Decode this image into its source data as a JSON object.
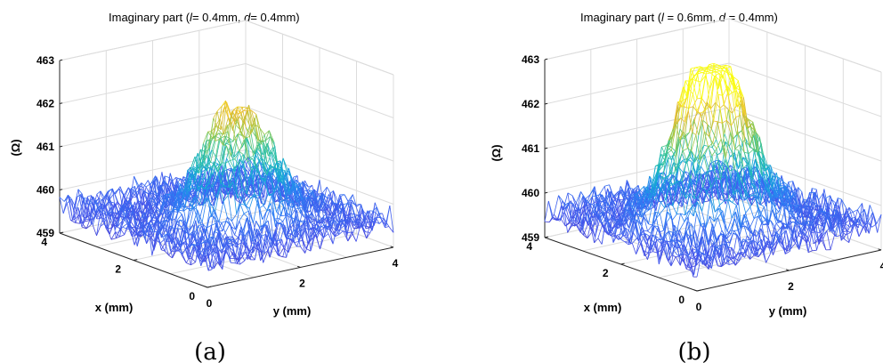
{
  "figure": {
    "panels": [
      {
        "caption": "(a)",
        "title_prefix": "Imaginary part   (",
        "title_l_var": "l",
        "title_l_value": "= 0.4mm, ",
        "title_d_var": "d",
        "title_d_value": "= 0.4mm)"
      },
      {
        "caption": "(b)",
        "title_prefix": "Imaginary part   (",
        "title_l_var": "l",
        "title_l_value": " = 0.6mm, ",
        "title_d_var": "d",
        "title_d_value": " = 0.4mm)"
      }
    ]
  },
  "chart_data": [
    {
      "type": "surface-mesh",
      "title": "Imaginary part (l= 0.4mm, d= 0.4mm)",
      "xlabel": "x (mm)",
      "ylabel": "y (mm)",
      "zlabel": "(Ω)",
      "xlim": [
        0,
        4
      ],
      "ylim": [
        0,
        4
      ],
      "zlim": [
        459,
        463
      ],
      "x_ticks": [
        "0",
        "2",
        "4"
      ],
      "y_ticks": [
        "0",
        "2",
        "4"
      ],
      "z_ticks": [
        "459",
        "460",
        "461",
        "462",
        "463"
      ],
      "baseline": 459.6,
      "peaks": [
        {
          "x": 1.8,
          "y": 1.8,
          "height": 461.2
        },
        {
          "x": 1.8,
          "y": 2.4,
          "height": 461.0
        }
      ],
      "noise_amplitude": 0.35,
      "grid_size": 41,
      "colormap": "parula"
    },
    {
      "type": "surface-mesh",
      "title": "Imaginary part (l = 0.6mm, d = 0.4mm)",
      "xlabel": "x (mm)",
      "ylabel": "y (mm)",
      "zlabel": "(Ω)",
      "xlim": [
        0,
        4
      ],
      "ylim": [
        0,
        4
      ],
      "zlim": [
        459,
        463
      ],
      "x_ticks": [
        "0",
        "2",
        "4"
      ],
      "y_ticks": [
        "0",
        "2",
        "4"
      ],
      "z_ticks": [
        "459",
        "460",
        "461",
        "462",
        "463"
      ],
      "baseline": 459.6,
      "peaks": [
        {
          "x": 1.9,
          "y": 1.6,
          "height": 462.4
        },
        {
          "x": 1.9,
          "y": 2.3,
          "height": 461.7
        }
      ],
      "noise_amplitude": 0.35,
      "grid_size": 41,
      "colormap": "parula"
    }
  ]
}
